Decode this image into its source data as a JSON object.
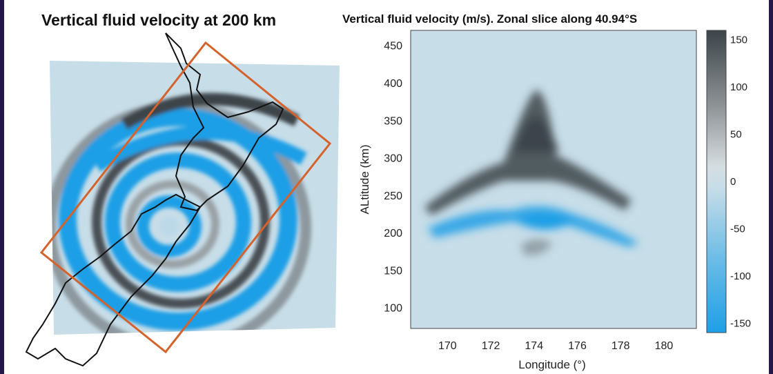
{
  "left_panel": {
    "title": "Vertical fluid velocity at 200 km"
  },
  "right_panel": {
    "title": "Vertical fluid velocity (m/s). Zonal slice along 40.94°S"
  },
  "colors": {
    "positive_max": "#3c4449",
    "neutral": "#c7dde8",
    "negative_max": "#1e9fe6",
    "box_outline": "#d4622a",
    "coastline": "#111111"
  },
  "chart_data": [
    {
      "type": "heatmap",
      "title": "Vertical fluid velocity at 200 km",
      "description_map": "map of New Zealand with concentric wave rings of vertical velocity",
      "xlabel": "",
      "ylabel": ""
    },
    {
      "type": "heatmap",
      "title": "Vertical fluid velocity (m/s). Zonal slice along 40.94°S",
      "xlabel": "Longitude (°)",
      "ylabel": "ALtitude (km)",
      "xlim": [
        168.3,
        181.5
      ],
      "ylim": [
        72,
        470
      ],
      "x_ticks": [
        170,
        172,
        174,
        176,
        178,
        180
      ],
      "y_ticks": [
        100,
        150,
        200,
        250,
        300,
        350,
        400,
        450
      ],
      "colorbar": {
        "ticks": [
          150,
          100,
          50,
          0,
          -50,
          -100,
          -150
        ],
        "range": [
          -160,
          160
        ],
        "unit": "m/s"
      }
    }
  ]
}
